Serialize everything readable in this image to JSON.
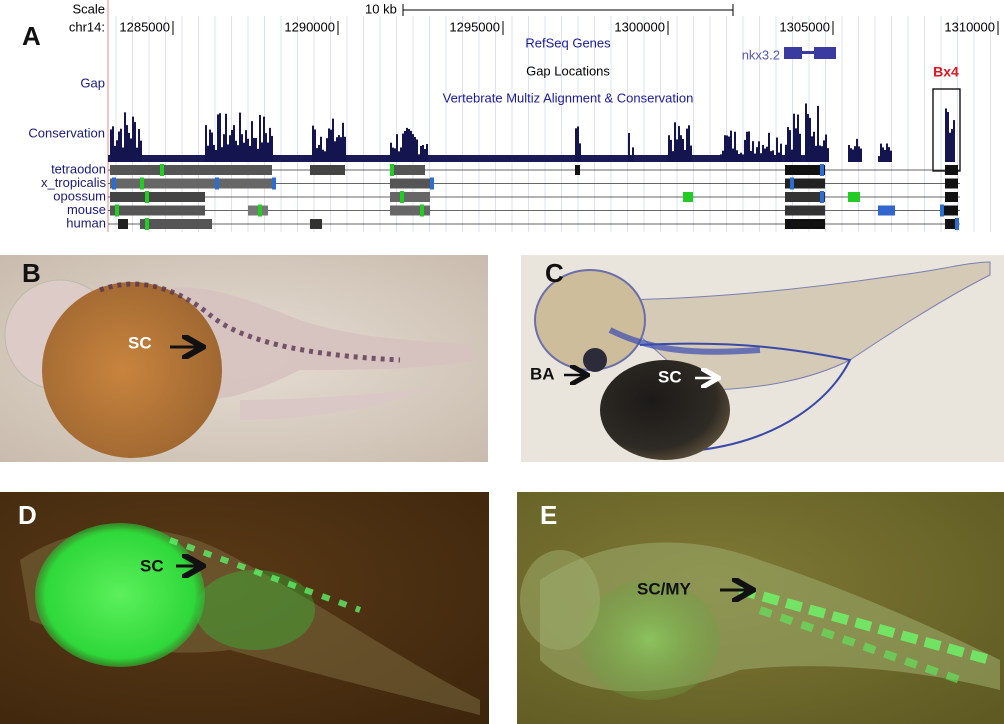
{
  "panel_a": {
    "label": "A",
    "scale_label": "Scale",
    "chrom_label": "chr14:",
    "scale_bar": "10 kb",
    "positions": [
      "1285000",
      "1290000",
      "1295000",
      "1300000",
      "1305000",
      "1310000"
    ],
    "refseq_track": "RefSeq Genes",
    "gene": "nkx3.2",
    "gap_track": "Gap Locations",
    "gap_label": "Gap",
    "multiz_track": "Vertebrate Multiz Alignment & Conservation",
    "conservation_label": "Conservation",
    "element": "Bx4",
    "species": [
      "tetraodon",
      "x_tropicalis",
      "opossum",
      "mouse",
      "human"
    ]
  },
  "panel_b": {
    "label": "B",
    "arrows": [
      "SC"
    ]
  },
  "panel_c": {
    "label": "C",
    "arrows": [
      "BA",
      "SC"
    ]
  },
  "panel_d": {
    "label": "D",
    "arrows": [
      "SC"
    ]
  },
  "panel_e": {
    "label": "E",
    "arrows": [
      "SC/MY"
    ]
  }
}
